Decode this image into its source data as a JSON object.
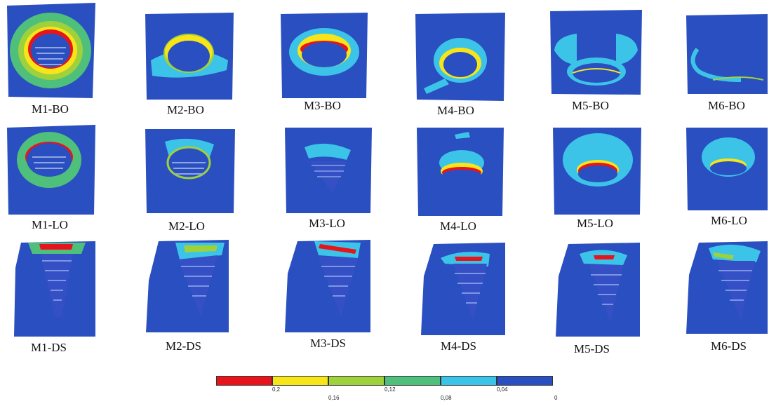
{
  "panels": {
    "bo": [
      "M1-BO",
      "M2-BO",
      "M3-BO",
      "M4-BO",
      "M5-BO",
      "M6-BO"
    ],
    "lo": [
      "M1-LO",
      "M2-LO",
      "M3-LO",
      "M4-LO",
      "M5-LO",
      "M6-LO"
    ],
    "ds": [
      "M1-DS",
      "M2-DS",
      "M3-DS",
      "M4-DS",
      "M5-DS",
      "M6-DS"
    ]
  },
  "legend": {
    "colors": [
      "#e8141b",
      "#f7e51a",
      "#9fd13c",
      "#4fbf7c",
      "#3cc4e8",
      "#2a4fc0"
    ],
    "ticks_upper": [
      "0,2",
      "0,12",
      "0,04"
    ],
    "ticks_lower": [
      "0,16",
      "0,08",
      "0"
    ]
  }
}
